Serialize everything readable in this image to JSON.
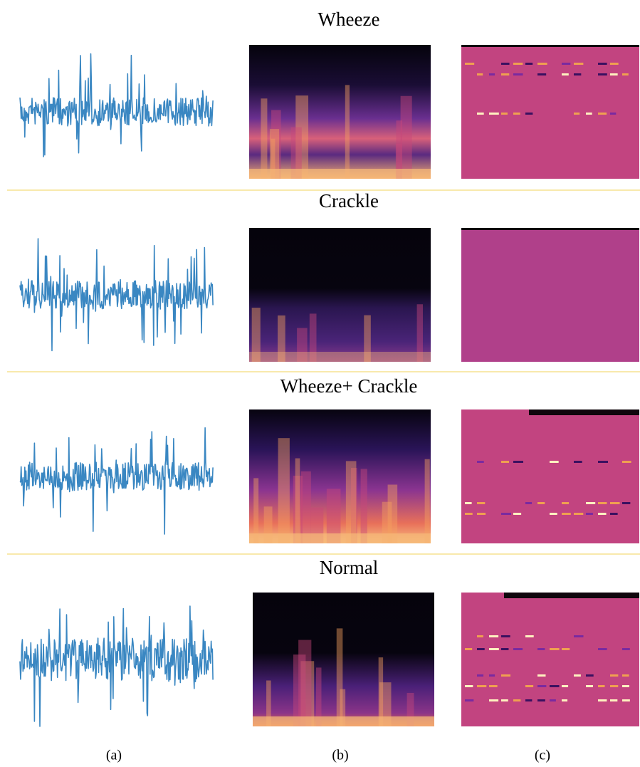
{
  "rows": [
    {
      "title": "Wheeze"
    },
    {
      "title": "Crackle"
    },
    {
      "title": "Wheeze+ Crackle"
    },
    {
      "title": "Normal"
    }
  ],
  "column_labels": [
    "(a)",
    "(b)",
    "(c)"
  ]
}
